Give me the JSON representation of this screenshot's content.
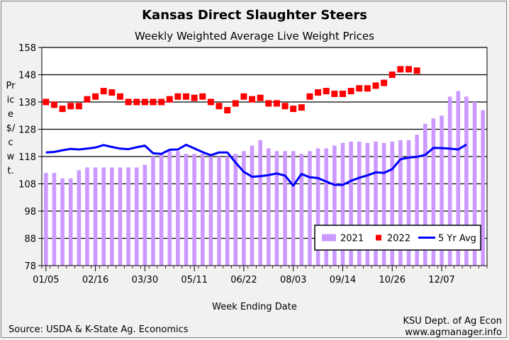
{
  "chart_data": {
    "type": "bar+line",
    "title": "Kansas Direct Slaughter Steers",
    "subtitle": "Weekly Weighted Average Live Weight Prices",
    "xlabel": "Week Ending Date",
    "ylabel": "Price $/cwt.",
    "ylim": [
      78,
      158
    ],
    "yticks": [
      78,
      88,
      98,
      108,
      118,
      128,
      138,
      148,
      158
    ],
    "xtick_labels": [
      "01/05",
      "02/16",
      "03/30",
      "05/11",
      "06/22",
      "08/03",
      "09/14",
      "10/26",
      "12/07"
    ],
    "xtick_positions": [
      0,
      6,
      12,
      18,
      24,
      30,
      36,
      42,
      48
    ],
    "grid": "horizontal",
    "legend_position": "bottom-right",
    "series": [
      {
        "name": "2021",
        "kind": "bar",
        "color": "#cc99ff",
        "values": [
          112,
          112,
          110,
          110,
          113,
          114,
          114,
          114,
          114,
          114,
          114,
          114,
          115,
          118,
          119,
          120,
          120,
          119,
          119,
          119,
          118,
          118,
          118,
          119,
          120,
          122,
          124,
          121,
          120,
          120,
          120,
          119,
          120,
          121,
          121,
          122,
          123,
          123.5,
          123.5,
          123,
          123.5,
          123,
          123.5,
          124,
          124,
          126,
          130,
          132,
          133,
          140,
          142,
          140,
          138,
          135
        ]
      },
      {
        "name": "2022",
        "kind": "marker",
        "color": "#ff0000",
        "values": [
          138,
          137,
          135.5,
          136.5,
          136.5,
          139,
          140,
          142,
          141.5,
          140,
          138,
          138,
          138,
          138,
          138,
          139,
          140,
          140,
          139.5,
          140,
          138,
          136.5,
          135,
          137.5,
          140,
          139,
          139.5,
          137.5,
          137.5,
          136.5,
          135.5,
          136,
          140,
          141.5,
          142,
          141,
          141,
          142,
          143,
          143,
          144,
          145,
          148,
          150,
          150,
          149.5
        ]
      },
      {
        "name": "5 Yr Avg",
        "kind": "line",
        "color": "#0000ff",
        "values": [
          119.5,
          119.7,
          120.3,
          120.8,
          120.6,
          120.9,
          121.3,
          122.2,
          121.5,
          120.9,
          120.7,
          121.4,
          122.0,
          119.2,
          119.0,
          120.5,
          120.6,
          122.3,
          121.0,
          119.6,
          118.5,
          119.5,
          119.5,
          115.8,
          112.4,
          110.6,
          110.8,
          111.2,
          111.8,
          111.0,
          107.3,
          111.6,
          110.4,
          110.1,
          108.8,
          107.6,
          107.6,
          109.1,
          110.2,
          111.1,
          112.2,
          112.0,
          113.4,
          117.0,
          117.6,
          117.9,
          118.6,
          121.2,
          121.1,
          120.9,
          120.6,
          122.4
        ]
      }
    ]
  },
  "footer": {
    "source": "Source:  USDA & K-State Ag. Economics",
    "credit_line1": "KSU Dept. of Ag Econ",
    "credit_line2": "www.agmanager.info"
  }
}
